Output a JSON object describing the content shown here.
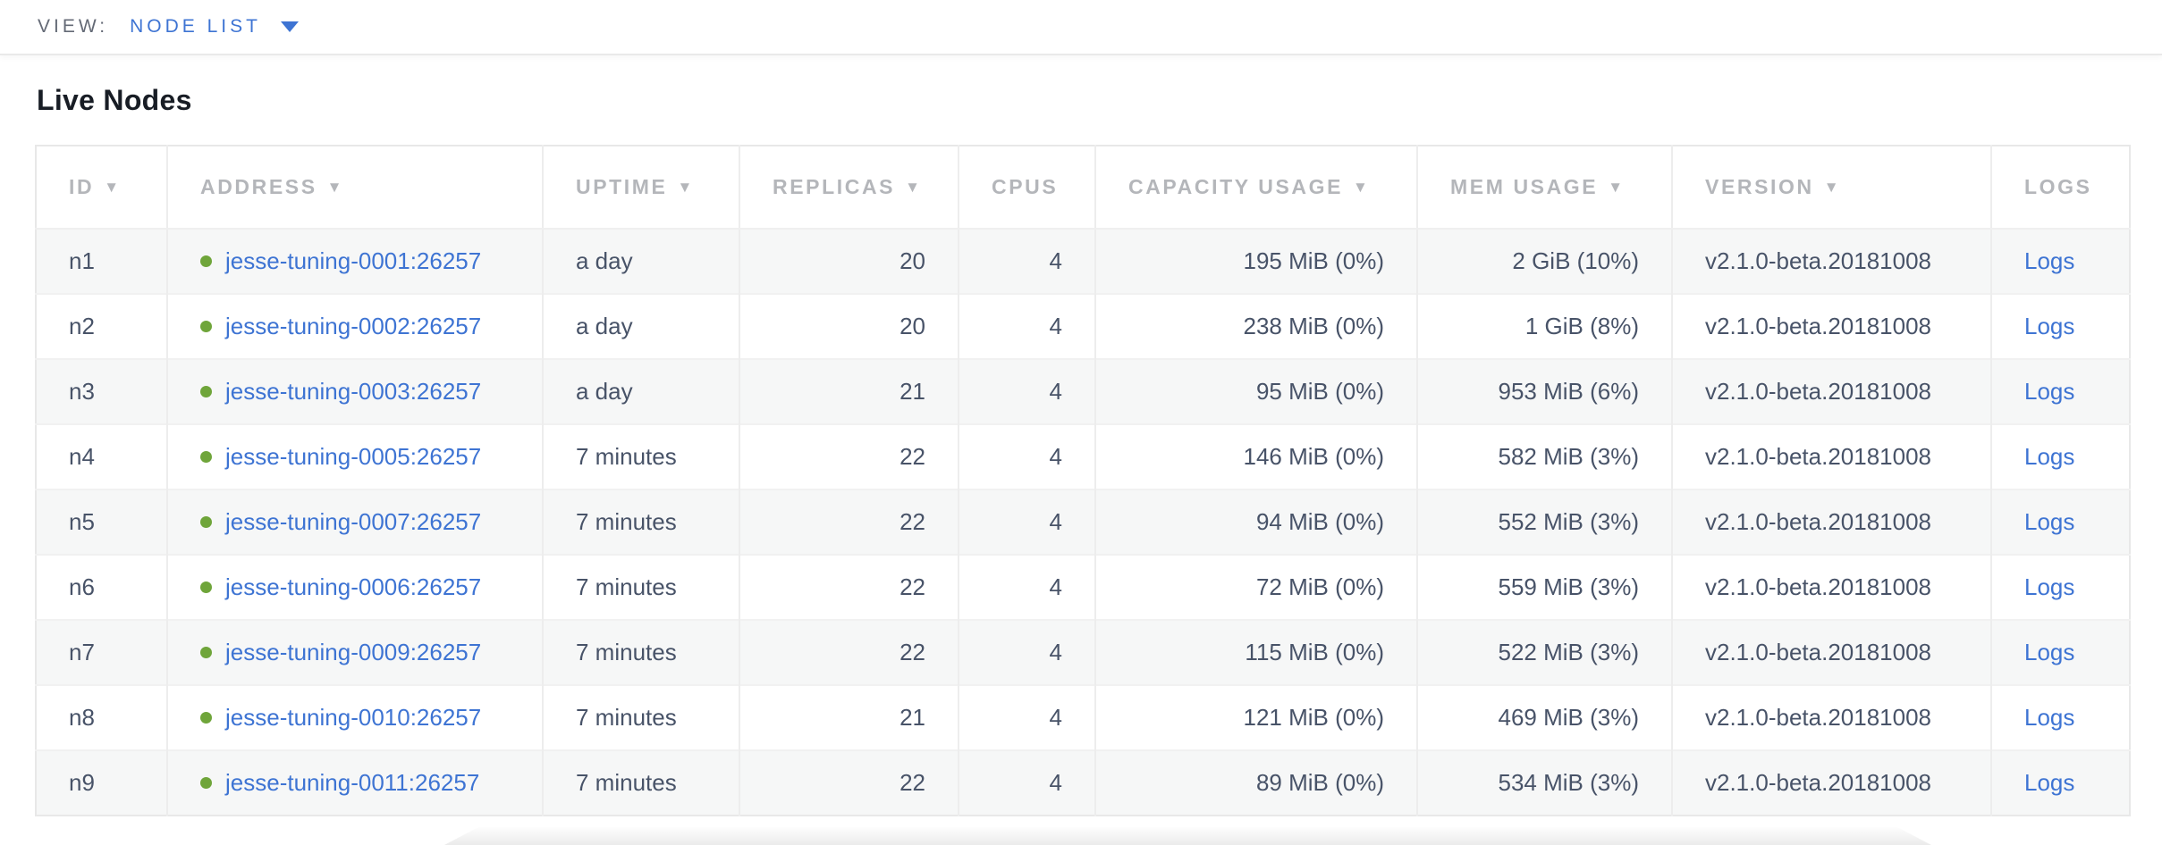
{
  "view_bar": {
    "label": "VIEW:",
    "selected": "NODE LIST"
  },
  "page": {
    "title": "Live Nodes"
  },
  "table": {
    "sort_icon": "▼",
    "columns": [
      {
        "label": "ID",
        "sortable": true
      },
      {
        "label": "ADDRESS",
        "sortable": true
      },
      {
        "label": "UPTIME",
        "sortable": true
      },
      {
        "label": "REPLICAS",
        "sortable": true
      },
      {
        "label": "CPUS",
        "sortable": false
      },
      {
        "label": "CAPACITY USAGE",
        "sortable": true
      },
      {
        "label": "MEM USAGE",
        "sortable": true
      },
      {
        "label": "VERSION",
        "sortable": true
      },
      {
        "label": "LOGS",
        "sortable": false
      }
    ],
    "rows": [
      {
        "id": "n1",
        "status": "live",
        "address": "jesse-tuning-0001:26257",
        "uptime": "a day",
        "replicas": "20",
        "cpus": "4",
        "capacity_usage": "195 MiB (0%)",
        "mem_usage": "2 GiB (10%)",
        "version": "v2.1.0-beta.20181008",
        "logs": "Logs"
      },
      {
        "id": "n2",
        "status": "live",
        "address": "jesse-tuning-0002:26257",
        "uptime": "a day",
        "replicas": "20",
        "cpus": "4",
        "capacity_usage": "238 MiB (0%)",
        "mem_usage": "1 GiB (8%)",
        "version": "v2.1.0-beta.20181008",
        "logs": "Logs"
      },
      {
        "id": "n3",
        "status": "live",
        "address": "jesse-tuning-0003:26257",
        "uptime": "a day",
        "replicas": "21",
        "cpus": "4",
        "capacity_usage": "95 MiB (0%)",
        "mem_usage": "953 MiB (6%)",
        "version": "v2.1.0-beta.20181008",
        "logs": "Logs"
      },
      {
        "id": "n4",
        "status": "live",
        "address": "jesse-tuning-0005:26257",
        "uptime": "7 minutes",
        "replicas": "22",
        "cpus": "4",
        "capacity_usage": "146 MiB (0%)",
        "mem_usage": "582 MiB (3%)",
        "version": "v2.1.0-beta.20181008",
        "logs": "Logs"
      },
      {
        "id": "n5",
        "status": "live",
        "address": "jesse-tuning-0007:26257",
        "uptime": "7 minutes",
        "replicas": "22",
        "cpus": "4",
        "capacity_usage": "94 MiB (0%)",
        "mem_usage": "552 MiB (3%)",
        "version": "v2.1.0-beta.20181008",
        "logs": "Logs"
      },
      {
        "id": "n6",
        "status": "live",
        "address": "jesse-tuning-0006:26257",
        "uptime": "7 minutes",
        "replicas": "22",
        "cpus": "4",
        "capacity_usage": "72 MiB (0%)",
        "mem_usage": "559 MiB (3%)",
        "version": "v2.1.0-beta.20181008",
        "logs": "Logs"
      },
      {
        "id": "n7",
        "status": "live",
        "address": "jesse-tuning-0009:26257",
        "uptime": "7 minutes",
        "replicas": "22",
        "cpus": "4",
        "capacity_usage": "115 MiB (0%)",
        "mem_usage": "522 MiB (3%)",
        "version": "v2.1.0-beta.20181008",
        "logs": "Logs"
      },
      {
        "id": "n8",
        "status": "live",
        "address": "jesse-tuning-0010:26257",
        "uptime": "7 minutes",
        "replicas": "21",
        "cpus": "4",
        "capacity_usage": "121 MiB (0%)",
        "mem_usage": "469 MiB (3%)",
        "version": "v2.1.0-beta.20181008",
        "logs": "Logs"
      },
      {
        "id": "n9",
        "status": "live",
        "address": "jesse-tuning-0011:26257",
        "uptime": "7 minutes",
        "replicas": "22",
        "cpus": "4",
        "capacity_usage": "89 MiB (0%)",
        "mem_usage": "534 MiB (3%)",
        "version": "v2.1.0-beta.20181008",
        "logs": "Logs"
      }
    ]
  },
  "colors": {
    "link_blue": "#3e74d3",
    "live_green": "#6fa53a",
    "header_text": "#b4b6ba",
    "cell_text": "#485368",
    "stripe_bg": "#f6f7f7",
    "border": "#ededed"
  }
}
